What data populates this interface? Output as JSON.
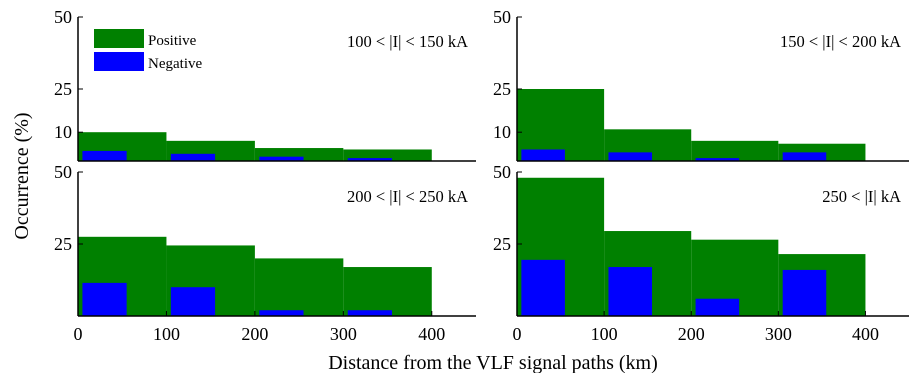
{
  "colors": {
    "positive": "#008000",
    "negative": "#0000ff",
    "axis": "#000000"
  },
  "figure": {
    "ylabel": "Occurrence (%)",
    "xlabel": "Distance from the VLF signal paths (km)"
  },
  "legend": {
    "placement": "top-left of top-left panel",
    "entries": [
      {
        "name": "Positive",
        "color": "#008000"
      },
      {
        "name": "Negative",
        "color": "#0000ff"
      }
    ]
  },
  "chart_data": [
    {
      "type": "bar",
      "panel": "top-left",
      "label": "100 < |I| < 150 kA",
      "xlim": [
        0,
        450
      ],
      "ylim": [
        0,
        50
      ],
      "yticks": [
        "50",
        "25",
        "10"
      ],
      "ytick_values": [
        50,
        25,
        10
      ],
      "xticks": [],
      "series": [
        {
          "name": "Positive",
          "bins": [
            [
              0,
              100
            ],
            [
              100,
              200
            ],
            [
              200,
              300
            ],
            [
              300,
              400
            ]
          ],
          "values": [
            10,
            7,
            4.5,
            4
          ]
        },
        {
          "name": "Negative",
          "bins": [
            [
              5,
              55
            ],
            [
              105,
              155
            ],
            [
              205,
              255
            ],
            [
              305,
              355
            ]
          ],
          "values": [
            3.5,
            2.5,
            1.5,
            1
          ]
        }
      ]
    },
    {
      "type": "bar",
      "panel": "top-right",
      "label": "150 < |I| < 200 kA",
      "xlim": [
        0,
        450
      ],
      "ylim": [
        0,
        50
      ],
      "yticks": [
        "50",
        "25",
        "10"
      ],
      "ytick_values": [
        50,
        25,
        10
      ],
      "xticks": [],
      "series": [
        {
          "name": "Positive",
          "bins": [
            [
              0,
              100
            ],
            [
              100,
              200
            ],
            [
              200,
              300
            ],
            [
              300,
              400
            ]
          ],
          "values": [
            25,
            11,
            7,
            6
          ]
        },
        {
          "name": "Negative",
          "bins": [
            [
              5,
              55
            ],
            [
              105,
              155
            ],
            [
              205,
              255
            ],
            [
              305,
              355
            ]
          ],
          "values": [
            4,
            3,
            1,
            3
          ]
        }
      ]
    },
    {
      "type": "bar",
      "panel": "bottom-left",
      "label": "200 < |I| < 250 kA",
      "xlim": [
        0,
        450
      ],
      "ylim": [
        0,
        50
      ],
      "yticks": [
        "50",
        "25"
      ],
      "ytick_values": [
        50,
        25
      ],
      "xticks": [
        "0",
        "100",
        "200",
        "300",
        "400"
      ],
      "xtick_values": [
        0,
        100,
        200,
        300,
        400
      ],
      "series": [
        {
          "name": "Positive",
          "bins": [
            [
              0,
              100
            ],
            [
              100,
              200
            ],
            [
              200,
              300
            ],
            [
              300,
              400
            ]
          ],
          "values": [
            27.5,
            24.5,
            20,
            17
          ]
        },
        {
          "name": "Negative",
          "bins": [
            [
              5,
              55
            ],
            [
              105,
              155
            ],
            [
              205,
              255
            ],
            [
              305,
              355
            ]
          ],
          "values": [
            11.5,
            10,
            2,
            2
          ]
        }
      ]
    },
    {
      "type": "bar",
      "panel": "bottom-right",
      "label": "250 < |I| kA",
      "xlim": [
        0,
        450
      ],
      "ylim": [
        0,
        50
      ],
      "yticks": [
        "50",
        "25"
      ],
      "ytick_values": [
        50,
        25
      ],
      "xticks": [
        "0",
        "100",
        "200",
        "300",
        "400"
      ],
      "xtick_values": [
        0,
        100,
        200,
        300,
        400
      ],
      "series": [
        {
          "name": "Positive",
          "bins": [
            [
              0,
              100
            ],
            [
              100,
              200
            ],
            [
              200,
              300
            ],
            [
              300,
              400
            ]
          ],
          "values": [
            48,
            29.5,
            26.5,
            21.5
          ]
        },
        {
          "name": "Negative",
          "bins": [
            [
              5,
              55
            ],
            [
              105,
              155
            ],
            [
              205,
              255
            ],
            [
              305,
              355
            ]
          ],
          "values": [
            19.5,
            17,
            6,
            16
          ]
        }
      ]
    }
  ]
}
